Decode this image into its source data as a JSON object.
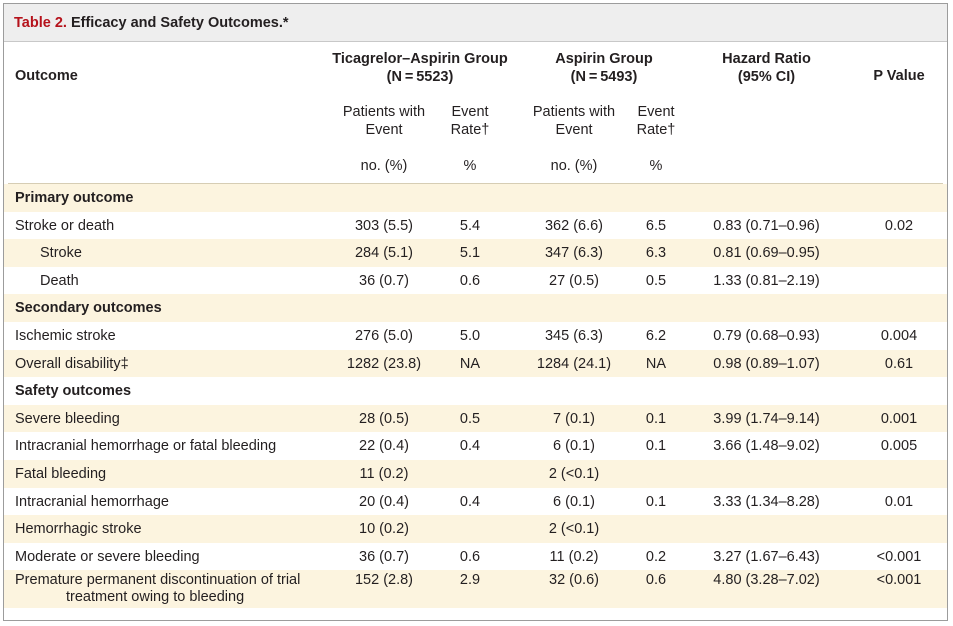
{
  "title": {
    "label": "Table 2.",
    "text": " Efficacy and Safety Outcomes.*"
  },
  "header": {
    "outcome": "Outcome",
    "group1": [
      "Ticagrelor–Aspirin Group",
      "(N = 5523)"
    ],
    "group2": [
      "Aspirin Group",
      "(N = 5493)"
    ],
    "hr": [
      "Hazard Ratio",
      "(95% CI)"
    ],
    "p": "P Value",
    "patients": [
      "Patients with",
      "Event"
    ],
    "rate": [
      "Event",
      "Rate†"
    ],
    "unit_n": "no. (%)",
    "unit_pct": "%"
  },
  "rows": [
    {
      "type": "section",
      "label": "Primary outcome"
    },
    {
      "label": "Stroke or death",
      "t_n": "303 (5.5)",
      "t_r": "5.4",
      "a_n": "362 (6.6)",
      "a_r": "6.5",
      "hr": "0.83 (0.71–0.96)",
      "p": "0.02"
    },
    {
      "label": "Stroke",
      "indent": true,
      "t_n": "284 (5.1)",
      "t_r": "5.1",
      "a_n": "347 (6.3)",
      "a_r": "6.3",
      "hr": "0.81 (0.69–0.95)",
      "p": ""
    },
    {
      "label": "Death",
      "indent": true,
      "t_n": "36 (0.7)",
      "t_r": "0.6",
      "a_n": "27 (0.5)",
      "a_r": "0.5",
      "hr": "1.33 (0.81–2.19)",
      "p": ""
    },
    {
      "type": "section",
      "label": "Secondary outcomes"
    },
    {
      "label": "Ischemic stroke",
      "t_n": "276 (5.0)",
      "t_r": "5.0",
      "a_n": "345 (6.3)",
      "a_r": "6.2",
      "hr": "0.79 (0.68–0.93)",
      "p": "0.004"
    },
    {
      "label": "Overall disability‡",
      "t_n": "1282 (23.8)",
      "t_r": "NA",
      "a_n": "1284 (24.1)",
      "a_r": "NA",
      "hr": "0.98 (0.89–1.07)",
      "p": "0.61"
    },
    {
      "type": "section",
      "label": "Safety outcomes"
    },
    {
      "label": "Severe bleeding",
      "t_n": "28 (0.5)",
      "t_r": "0.5",
      "a_n": "7 (0.1)",
      "a_r": "0.1",
      "hr": "3.99 (1.74–9.14)",
      "p": "0.001"
    },
    {
      "label": "Intracranial hemorrhage or fatal bleeding",
      "t_n": "22 (0.4)",
      "t_r": "0.4",
      "a_n": "6 (0.1)",
      "a_r": "0.1",
      "hr": "3.66 (1.48–9.02)",
      "p": "0.005"
    },
    {
      "label": "Fatal bleeding",
      "t_n": "11 (0.2)",
      "t_r": "",
      "a_n": "2 (<0.1)",
      "a_r": "",
      "hr": "",
      "p": ""
    },
    {
      "label": "Intracranial hemorrhage",
      "t_n": "20 (0.4)",
      "t_r": "0.4",
      "a_n": "6 (0.1)",
      "a_r": "0.1",
      "hr": "3.33 (1.34–8.28)",
      "p": "0.01"
    },
    {
      "label": "Hemorrhagic stroke",
      "t_n": "10 (0.2)",
      "t_r": "",
      "a_n": "2 (<0.1)",
      "a_r": "",
      "hr": "",
      "p": ""
    },
    {
      "label": "Moderate or severe bleeding",
      "t_n": "36 (0.7)",
      "t_r": "0.6",
      "a_n": "11 (0.2)",
      "a_r": "0.2",
      "hr": "3.27 (1.67–6.43)",
      "p": "<0.001"
    },
    {
      "label": "Premature permanent discontinuation of trial",
      "label2": "treatment owing to bleeding",
      "t_n": "152 (2.8)",
      "t_r": "2.9",
      "a_n": "32 (0.6)",
      "a_r": "0.6",
      "hr": "4.80 (3.28–7.02)",
      "p": "<0.001"
    }
  ]
}
